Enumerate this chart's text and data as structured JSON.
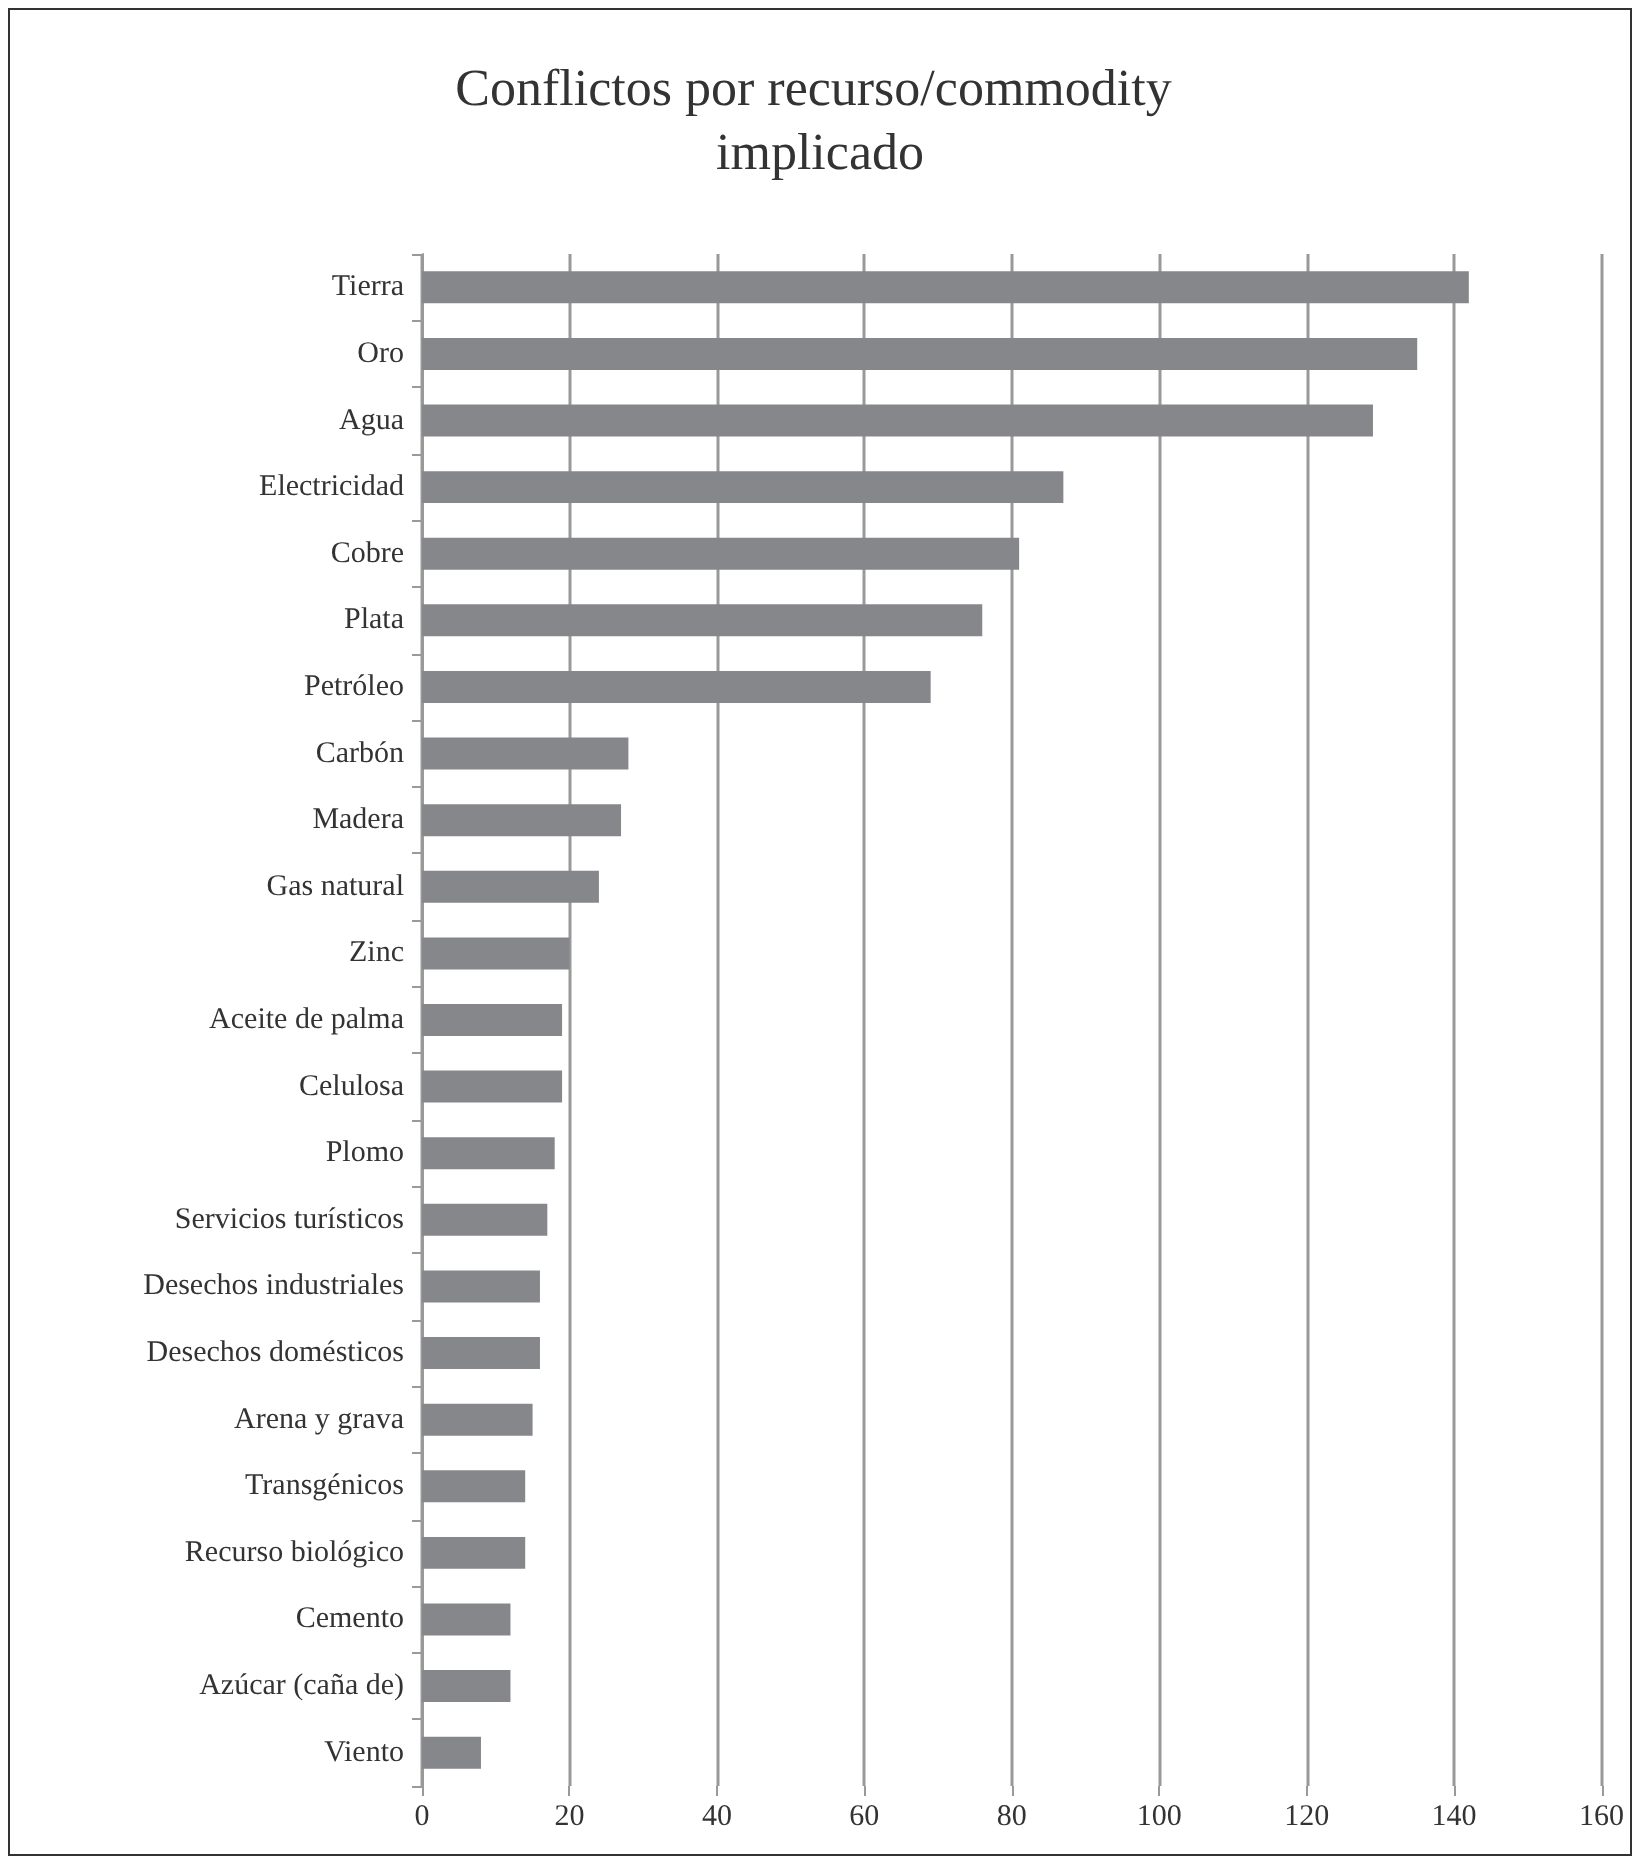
{
  "chart_data": {
    "type": "bar",
    "orientation": "horizontal",
    "title": "Conflictos por recurso/commodity implicado",
    "categories": [
      "Tierra",
      "Oro",
      "Agua",
      "Electricidad",
      "Cobre",
      "Plata",
      "Petróleo",
      "Carbón",
      "Madera",
      "Gas natural",
      "Zinc",
      "Aceite de palma",
      "Celulosa",
      "Plomo",
      "Servicios turísticos",
      "Desechos industriales",
      "Desechos domésticos",
      "Arena y grava",
      "Transgénicos",
      "Recurso biológico",
      "Cemento",
      "Azúcar (caña de)",
      "Viento"
    ],
    "values": [
      142,
      135,
      129,
      87,
      81,
      76,
      69,
      28,
      27,
      24,
      20,
      19,
      19,
      18,
      17,
      16,
      16,
      15,
      14,
      14,
      12,
      12,
      8
    ],
    "color": "#86878b",
    "xlim": [
      0,
      160
    ],
    "xticks": [
      0,
      20,
      40,
      60,
      80,
      100,
      120,
      140,
      160
    ],
    "grid": "x"
  }
}
